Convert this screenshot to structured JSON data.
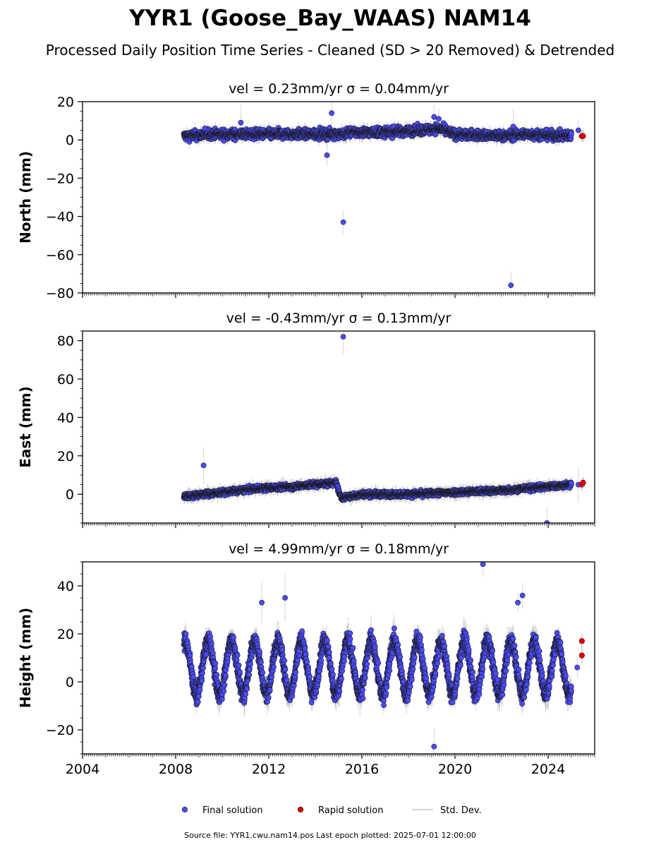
{
  "title": "YYR1 (Goose_Bay_WAAS) NAM14",
  "subtitle": "Processed Daily Position Time Series - Cleaned (SD > 20 Removed) & Detrended",
  "footer": "Source file: YYR1.cwu.nam14.pos  Last epoch plotted: 2025-07-01 12:00:00",
  "legend": {
    "placement": "bottom-center",
    "items": [
      {
        "label": "Final solution",
        "color": "#4b4bff",
        "kind": "marker"
      },
      {
        "label": "Rapid solution",
        "color": "#e00000",
        "kind": "marker"
      },
      {
        "label": "Std. Dev.",
        "color": "#c8c8c8",
        "kind": "line"
      }
    ]
  },
  "colors": {
    "final": "#4b4bff",
    "rapid": "#e00000",
    "stddev": "#b4b4b4",
    "edge": "#1a1a1a"
  },
  "chart_data": [
    {
      "type": "scatter",
      "component": "north",
      "title_vel": "vel = 0.23mm/yr",
      "title_sigma": "σ = 0.04mm/yr",
      "ylabel": "North (mm)",
      "xlim": [
        2004,
        2026
      ],
      "ylim": [
        -80,
        20
      ],
      "yticks": [
        -80,
        -60,
        -40,
        -20,
        0,
        20
      ],
      "xticks": [
        2004,
        2008,
        2012,
        2016,
        2020,
        2024
      ],
      "grid": false,
      "data_span": [
        2008.35,
        2025.0
      ],
      "final_trend": [
        [
          2008.4,
          2
        ],
        [
          2009.5,
          3
        ],
        [
          2011,
          3
        ],
        [
          2012.5,
          3
        ],
        [
          2014,
          3
        ],
        [
          2015.2,
          3
        ],
        [
          2015.5,
          4
        ],
        [
          2017,
          4
        ],
        [
          2018.5,
          5
        ],
        [
          2019.3,
          6
        ],
        [
          2020,
          3
        ],
        [
          2022,
          2
        ],
        [
          2023,
          3
        ],
        [
          2025,
          2
        ]
      ],
      "final_scatter_amp": 2.5,
      "final_outliers": [
        [
          2009.25,
          6
        ],
        [
          2010.8,
          9
        ],
        [
          2014.5,
          -8
        ],
        [
          2014.7,
          14
        ],
        [
          2015.2,
          -43
        ],
        [
          2019.1,
          12
        ],
        [
          2019.3,
          11
        ],
        [
          2022.4,
          -76
        ],
        [
          2022.5,
          7
        ],
        [
          2025.3,
          5
        ]
      ],
      "rapid": [
        [
          2025.45,
          2
        ],
        [
          2025.5,
          2
        ]
      ]
    },
    {
      "type": "scatter",
      "component": "east",
      "title_vel": "vel = -0.43mm/yr",
      "title_sigma": "σ = 0.13mm/yr",
      "ylabel": "East (mm)",
      "xlim": [
        2004,
        2026
      ],
      "ylim": [
        -15,
        85
      ],
      "yticks": [
        0,
        20,
        40,
        60,
        80
      ],
      "xticks": [
        2004,
        2008,
        2012,
        2016,
        2020,
        2024
      ],
      "grid": false,
      "data_span": [
        2008.35,
        2025.0
      ],
      "final_trend": [
        [
          2008.4,
          -1
        ],
        [
          2010,
          1
        ],
        [
          2011.5,
          3
        ],
        [
          2013,
          4
        ],
        [
          2014.9,
          6
        ],
        [
          2015.1,
          -2
        ],
        [
          2016,
          0
        ],
        [
          2018,
          0
        ],
        [
          2020,
          1
        ],
        [
          2022,
          2
        ],
        [
          2024,
          4
        ],
        [
          2025,
          5
        ]
      ],
      "final_scatter_amp": 1.5,
      "final_outliers": [
        [
          2009.2,
          15
        ],
        [
          2015.2,
          82
        ],
        [
          2023.95,
          -15
        ],
        [
          2025.3,
          5
        ]
      ],
      "rapid": [
        [
          2025.45,
          5
        ],
        [
          2025.5,
          6
        ]
      ]
    },
    {
      "type": "scatter",
      "component": "height",
      "title_vel": "vel = 4.99mm/yr",
      "title_sigma": "σ = 0.18mm/yr",
      "ylabel": "Height (mm)",
      "xlim": [
        2004,
        2026
      ],
      "ylim": [
        -30,
        50
      ],
      "yticks": [
        -20,
        0,
        20,
        40
      ],
      "xticks": [
        2004,
        2008,
        2012,
        2016,
        2020,
        2024
      ],
      "grid": false,
      "data_span": [
        2008.35,
        2025.0
      ],
      "seasonal_mean": 6,
      "seasonal_amp": 11,
      "final_scatter_amp": 4,
      "final_outliers": [
        [
          2011.7,
          33
        ],
        [
          2012.7,
          35
        ],
        [
          2019.1,
          -27
        ],
        [
          2021.2,
          49
        ],
        [
          2022.7,
          33
        ],
        [
          2022.9,
          36
        ],
        [
          2025.25,
          6
        ]
      ],
      "rapid": [
        [
          2025.45,
          17
        ],
        [
          2025.45,
          11
        ]
      ]
    }
  ]
}
